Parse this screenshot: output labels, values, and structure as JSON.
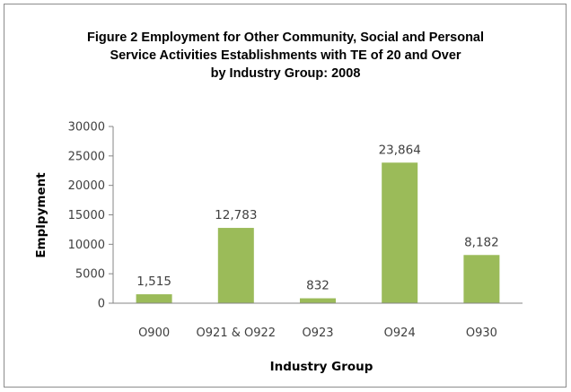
{
  "chart_data": {
    "type": "bar",
    "title_lines": [
      "Figure 2 Employment for Other Community, Social and Personal",
      "Service Activities Establishments with TE of 20 and Over",
      "by Industry Group: 2008"
    ],
    "categories": [
      "O900",
      "O921 & O922",
      "O923",
      "O924",
      "O930"
    ],
    "values": [
      1515,
      12783,
      832,
      23864,
      8182
    ],
    "data_labels": [
      "1,515",
      "12,783",
      "832",
      "23,864",
      "8,182"
    ],
    "xlabel": "Industry  Group",
    "ylabel": "Emplpyment",
    "ylim": [
      0,
      30000
    ],
    "yticks": [
      0,
      5000,
      10000,
      15000,
      20000,
      25000,
      30000
    ],
    "bar_color": "#9bbb59",
    "grid": false,
    "legend": "none"
  }
}
